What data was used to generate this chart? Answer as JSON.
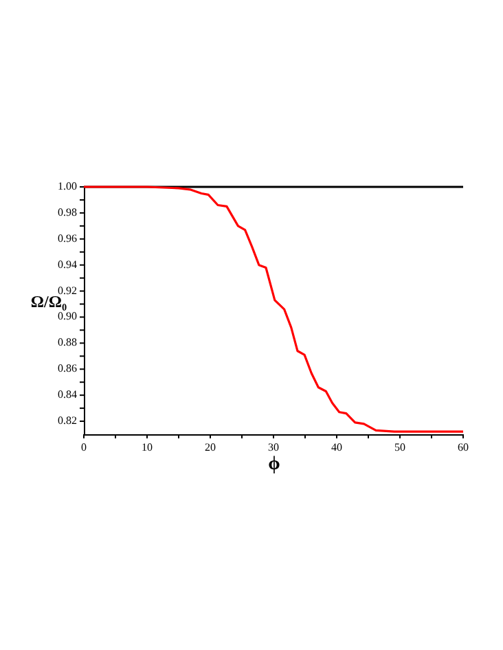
{
  "chart_data": {
    "type": "line",
    "xlabel": "ϕ",
    "ylabel": "Ω/Ω₀",
    "xlim": [
      0,
      60
    ],
    "ylim": [
      0.81,
      1.0
    ],
    "xticks": [
      0,
      {
        "value": 5,
        "label": null
      },
      10,
      {
        "value": 15,
        "label": null
      },
      20,
      {
        "value": 25,
        "label": null
      },
      30,
      {
        "value": 35,
        "label": null
      },
      40,
      {
        "value": 45,
        "label": null
      },
      50,
      {
        "value": 55,
        "label": null
      },
      60
    ],
    "yticks": [
      {
        "value": 0.82,
        "label": "0.82"
      },
      {
        "value": 0.83,
        "label": null
      },
      {
        "value": 0.84,
        "label": "0.84"
      },
      {
        "value": 0.85,
        "label": null
      },
      {
        "value": 0.86,
        "label": "0.86"
      },
      {
        "value": 0.87,
        "label": null
      },
      {
        "value": 0.88,
        "label": "0.88"
      },
      {
        "value": 0.89,
        "label": null
      },
      {
        "value": 0.9,
        "label": "0.90"
      },
      {
        "value": 0.91,
        "label": null
      },
      {
        "value": 0.92,
        "label": "0.92"
      },
      {
        "value": 0.93,
        "label": null
      },
      {
        "value": 0.94,
        "label": "0.94"
      },
      {
        "value": 0.95,
        "label": null
      },
      {
        "value": 0.96,
        "label": "0.96"
      },
      {
        "value": 0.97,
        "label": null
      },
      {
        "value": 0.98,
        "label": "0.98"
      },
      {
        "value": 0.99,
        "label": null
      },
      {
        "value": 1.0,
        "label": "1.00"
      }
    ],
    "grid": false,
    "line_style": "solid",
    "marker": "none",
    "series": [
      {
        "color": "#000000",
        "x": [
          0,
          60
        ],
        "values": [
          1.0,
          1.0
        ]
      },
      {
        "color": "#ff0000",
        "x": [
          0,
          10,
          15,
          16.8,
          18.6,
          19.7,
          21.2,
          22.6,
          24.4,
          25.5,
          26.6,
          27.7,
          28.8,
          30.2,
          31.7,
          32.8,
          33.8,
          34.9,
          36.0,
          37.1,
          38.3,
          39.3,
          40.4,
          41.5,
          42.9,
          44.3,
          46.2,
          49.1,
          55,
          60
        ],
        "values": [
          1.0,
          1.0,
          0.999,
          0.998,
          0.995,
          0.994,
          0.986,
          0.985,
          0.97,
          0.967,
          0.954,
          0.94,
          0.938,
          0.913,
          0.906,
          0.892,
          0.874,
          0.871,
          0.857,
          0.846,
          0.843,
          0.834,
          0.827,
          0.826,
          0.819,
          0.818,
          0.813,
          0.812,
          0.812,
          0.812
        ]
      }
    ]
  }
}
